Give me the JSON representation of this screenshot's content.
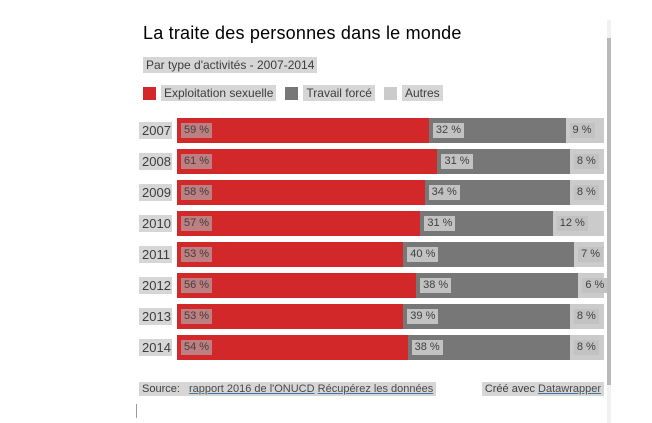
{
  "title": "La traite des personnes dans le monde",
  "subtitle": "Par type d'activités - 2007-2014",
  "colors": {
    "exploitation_sexuelle": "#d32829",
    "travail_force": "#777777",
    "autres": "#cbcbcb",
    "text_highlight_bg": "#d6d6d6"
  },
  "chart_data": {
    "type": "bar",
    "stacked": true,
    "orientation": "horizontal",
    "title": "La traite des personnes dans le monde",
    "subtitle": "Par type d'activités - 2007-2014",
    "categories": [
      "2007",
      "2008",
      "2009",
      "2010",
      "2011",
      "2012",
      "2013",
      "2014"
    ],
    "series": [
      {
        "name": "Exploitation sexuelle",
        "color": "#d32829",
        "label_bg": "#bd7f81",
        "values": [
          59,
          61,
          58,
          57,
          53,
          56,
          53,
          54
        ]
      },
      {
        "name": "Travail forcé",
        "color": "#777777",
        "label_bg": "#c2c2c2",
        "values": [
          32,
          31,
          34,
          31,
          40,
          38,
          39,
          38
        ]
      },
      {
        "name": "Autres",
        "color": "#cbcbcb",
        "label_bg": "#c2c2c2",
        "values": [
          9,
          8,
          8,
          12,
          7,
          6,
          8,
          8
        ]
      }
    ],
    "value_suffix": " %",
    "xlim": [
      0,
      100
    ],
    "legend_position": "top",
    "grid": false
  },
  "footer": {
    "source_prefix": "Source: ",
    "source_link": "rapport 2016 de l'ONUCD",
    "data_link": "Récupérez les données",
    "credit_prefix": "Créé avec ",
    "credit_link": "Datawrapper"
  }
}
